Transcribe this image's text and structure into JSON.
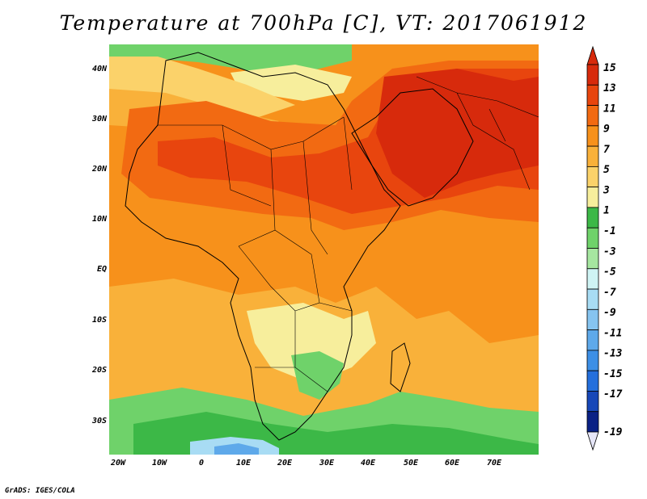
{
  "title": "Temperature at 700hPa [C], VT: 2017061912",
  "credit": "GrADS: IGES/COLA",
  "lat_labels": [
    "40N",
    "30N",
    "20N",
    "10N",
    "EQ",
    "10S",
    "20S",
    "30S"
  ],
  "lon_labels": [
    "20W",
    "10W",
    "0",
    "10E",
    "20E",
    "30E",
    "40E",
    "50E",
    "60E",
    "70E"
  ],
  "colorbar": {
    "labels": [
      "15",
      "13",
      "11",
      "9",
      "7",
      "5",
      "3",
      "1",
      "-1",
      "-3",
      "-5",
      "-7",
      "-9",
      "-11",
      "-13",
      "-15",
      "-17",
      "-19"
    ],
    "colors": [
      "#d72a0c",
      "#e8450e",
      "#f26a12",
      "#f7911b",
      "#f9b13a",
      "#fbd26a",
      "#f7ee9c",
      "#3cb847",
      "#6fd26a",
      "#a6e6a0",
      "#cff4f4",
      "#a8dcf4",
      "#86c4f0",
      "#5ea9ea",
      "#3c8fe6",
      "#246fdc",
      "#1747b8",
      "#0a2185"
    ]
  },
  "chart_data": {
    "type": "heatmap",
    "title": "Temperature at 700hPa [C], VT: 2017061912",
    "variable": "Temperature at 700hPa",
    "units": "C",
    "valid_time": "2017061912",
    "lat_range": [
      -36,
      45
    ],
    "lon_range": [
      -21,
      81
    ],
    "lat_ticks": [
      "40N",
      "30N",
      "20N",
      "10N",
      "EQ",
      "10S",
      "20S",
      "30S"
    ],
    "lon_ticks": [
      "20W",
      "10W",
      "0",
      "10E",
      "20E",
      "30E",
      "40E",
      "50E",
      "60E",
      "70E"
    ],
    "color_levels": [
      15,
      13,
      11,
      9,
      7,
      5,
      3,
      1,
      -1,
      -3,
      -5,
      -7,
      -9,
      -11,
      -13,
      -15,
      -17,
      -19
    ]
  }
}
